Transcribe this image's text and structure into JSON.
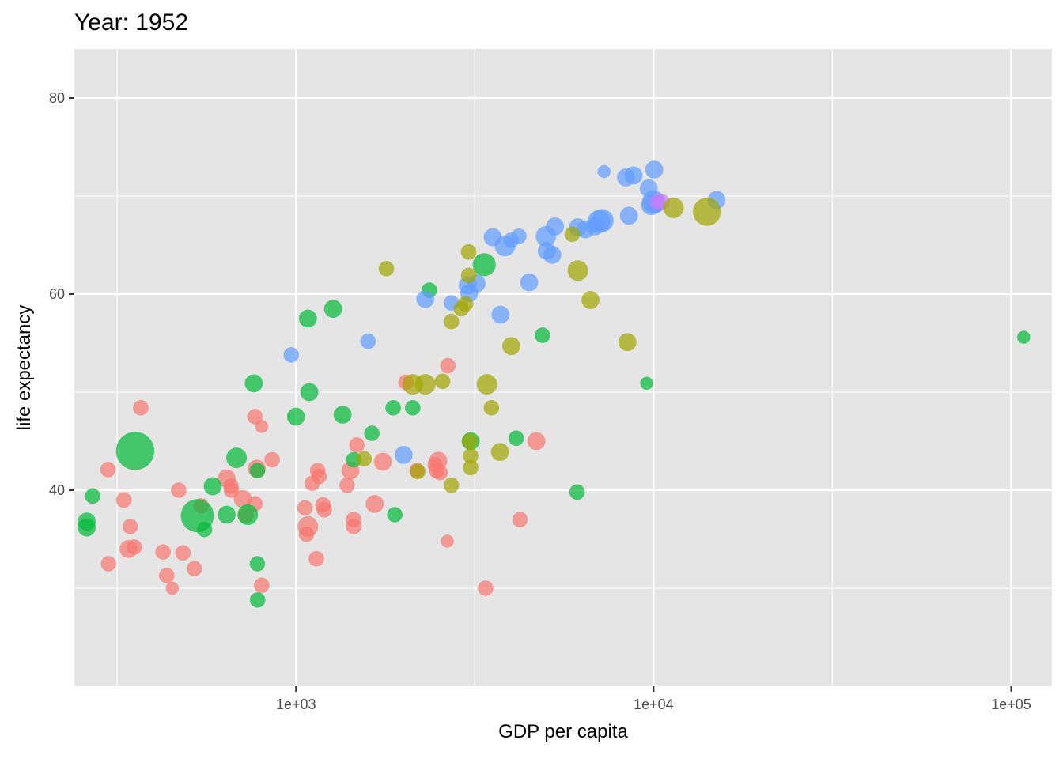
{
  "chart_data": {
    "type": "scatter",
    "title": "Year: 1952",
    "xlabel": "GDP per capita",
    "ylabel": "life expectancy",
    "x_scale": "log10",
    "xlim": [
      240,
      130000
    ],
    "ylim": [
      20,
      85
    ],
    "x_ticks": [
      1000,
      10000,
      100000
    ],
    "x_tick_labels": [
      "1e+03",
      "1e+04",
      "1e+05"
    ],
    "y_ticks": [
      40,
      60,
      80
    ],
    "y_tick_labels": [
      "40",
      "60",
      "80"
    ],
    "grid": true,
    "legend": "none",
    "groups": [
      {
        "color": "#F8766D",
        "points": [
          [
            298,
            42.1,
            3
          ],
          [
            299,
            32.5,
            3
          ],
          [
            330,
            39.0,
            3
          ],
          [
            344,
            36.3,
            3
          ],
          [
            353,
            34.2,
            3
          ],
          [
            340,
            34.0,
            4
          ],
          [
            368,
            48.4,
            3
          ],
          [
            425,
            33.7,
            3
          ],
          [
            435,
            31.3,
            3
          ],
          [
            451,
            30.0,
            2
          ],
          [
            470,
            40.0,
            3
          ],
          [
            483,
            33.6,
            3
          ],
          [
            520,
            32.0,
            3
          ],
          [
            543,
            38.4,
            3
          ],
          [
            640,
            41.2,
            4
          ],
          [
            658,
            40.4,
            3
          ],
          [
            660,
            40.0,
            3
          ],
          [
            710,
            39.1,
            4
          ],
          [
            725,
            37.4,
            3
          ],
          [
            768,
            38.6,
            3
          ],
          [
            777,
            42.2,
            4
          ],
          [
            768,
            47.5,
            3
          ],
          [
            802,
            46.5,
            2
          ],
          [
            802,
            30.3,
            3
          ],
          [
            858,
            43.1,
            3
          ],
          [
            1060,
            38.2,
            3
          ],
          [
            1070,
            35.5,
            3
          ],
          [
            1080,
            36.3,
            5
          ],
          [
            1110,
            40.7,
            3
          ],
          [
            1140,
            33.0,
            3
          ],
          [
            1150,
            42.0,
            3
          ],
          [
            1160,
            41.4,
            3
          ],
          [
            1190,
            38.5,
            3
          ],
          [
            1200,
            38.0,
            3
          ],
          [
            1390,
            40.5,
            3
          ],
          [
            1420,
            42.0,
            4
          ],
          [
            1450,
            37.0,
            3
          ],
          [
            1450,
            36.3,
            3
          ],
          [
            1480,
            44.6,
            3
          ],
          [
            1660,
            38.6,
            4
          ],
          [
            1750,
            42.9,
            4
          ],
          [
            2030,
            51.0,
            3
          ],
          [
            2180,
            42.0,
            3
          ],
          [
            2450,
            42.6,
            3
          ],
          [
            2500,
            43.0,
            4
          ],
          [
            2470,
            42.0,
            3
          ],
          [
            2530,
            41.8,
            3
          ],
          [
            2660,
            52.7,
            3
          ],
          [
            2650,
            34.8,
            2
          ],
          [
            3390,
            30.0,
            3
          ],
          [
            4230,
            37.0,
            3
          ],
          [
            4700,
            45.0,
            4
          ]
        ]
      },
      {
        "color": "#00BA38",
        "points": [
          [
            260,
            36.8,
            4
          ],
          [
            270,
            39.4,
            3
          ],
          [
            530,
            37.4,
            10
          ],
          [
            555,
            36.0,
            3
          ],
          [
            585,
            40.4,
            4
          ],
          [
            640,
            37.5,
            4
          ],
          [
            682,
            43.3,
            5
          ],
          [
            733,
            37.5,
            5
          ],
          [
            762,
            50.9,
            4
          ],
          [
            780,
            42.0,
            3
          ],
          [
            780,
            32.5,
            3
          ],
          [
            781,
            28.8,
            3
          ],
          [
            1000,
            47.5,
            4
          ],
          [
            1080,
            57.5,
            4
          ],
          [
            1090,
            50.0,
            4
          ],
          [
            1270,
            58.5,
            4
          ],
          [
            1350,
            47.7,
            4
          ],
          [
            1450,
            43.1,
            3
          ],
          [
            1630,
            45.8,
            3
          ],
          [
            1870,
            48.4,
            3
          ],
          [
            1890,
            37.5,
            3
          ],
          [
            2120,
            48.4,
            3
          ],
          [
            2360,
            60.4,
            3
          ],
          [
            3080,
            45.0,
            4
          ],
          [
            3360,
            63.0,
            6
          ],
          [
            4130,
            45.3,
            3
          ],
          [
            4890,
            55.8,
            3
          ],
          [
            6110,
            39.8,
            3
          ],
          [
            9560,
            50.9,
            2
          ],
          [
            108390,
            55.6,
            2
          ],
          [
            260,
            36.2,
            4
          ],
          [
            355,
            44.0,
            12
          ]
        ]
      },
      {
        "color": "#619CFF",
        "points": [
          [
            970,
            53.8,
            3
          ],
          [
            1590,
            55.2,
            3
          ],
          [
            2000,
            43.6,
            4
          ],
          [
            2300,
            59.5,
            4
          ],
          [
            2720,
            59.1,
            3
          ],
          [
            3050,
            60.1,
            4
          ],
          [
            3020,
            60.9,
            4
          ],
          [
            3200,
            61.1,
            4
          ],
          [
            3550,
            65.8,
            4
          ],
          [
            3730,
            57.9,
            4
          ],
          [
            3840,
            64.9,
            5
          ],
          [
            4000,
            65.5,
            3
          ],
          [
            4200,
            65.9,
            3
          ],
          [
            4490,
            61.2,
            4
          ],
          [
            5000,
            65.9,
            5
          ],
          [
            5030,
            64.4,
            4
          ],
          [
            5210,
            64.0,
            4
          ],
          [
            5300,
            66.9,
            4
          ],
          [
            6140,
            66.8,
            4
          ],
          [
            6450,
            66.6,
            4
          ],
          [
            6850,
            66.9,
            4
          ],
          [
            7040,
            67.4,
            6
          ],
          [
            7180,
            67.5,
            6
          ],
          [
            7270,
            72.5,
            2
          ],
          [
            8370,
            71.9,
            4
          ],
          [
            8530,
            68.0,
            4
          ],
          [
            8790,
            72.1,
            4
          ],
          [
            9690,
            70.8,
            4
          ],
          [
            9860,
            69.1,
            5
          ],
          [
            10040,
            72.7,
            4
          ],
          [
            10000,
            69.4,
            6
          ],
          [
            10150,
            69.2,
            4
          ],
          [
            15000,
            69.6,
            4
          ]
        ]
      },
      {
        "color": "#C77CFF",
        "points": [
          [
            10560,
            69.4,
            3
          ],
          [
            10200,
            69.4,
            3
          ]
        ]
      },
      {
        "color": "#A3A500",
        "points": [
          [
            1550,
            43.2,
            3
          ],
          [
            1790,
            62.6,
            3
          ],
          [
            2120,
            50.8,
            5
          ],
          [
            2190,
            41.9,
            3
          ],
          [
            2300,
            50.8,
            5
          ],
          [
            2570,
            51.1,
            3
          ],
          [
            2720,
            57.2,
            3
          ],
          [
            2720,
            40.5,
            3
          ],
          [
            2900,
            58.5,
            3
          ],
          [
            2980,
            59.0,
            3
          ],
          [
            3040,
            61.9,
            3
          ],
          [
            3040,
            64.3,
            3
          ],
          [
            3060,
            45.0,
            3
          ],
          [
            3080,
            43.5,
            3
          ],
          [
            3080,
            42.3,
            3
          ],
          [
            3420,
            50.8,
            5
          ],
          [
            3520,
            48.4,
            3
          ],
          [
            3720,
            43.9,
            4
          ],
          [
            4000,
            54.7,
            4
          ],
          [
            5920,
            66.1,
            3
          ],
          [
            6140,
            62.4,
            5
          ],
          [
            6660,
            59.4,
            4
          ],
          [
            8450,
            55.1,
            4
          ],
          [
            11370,
            68.8,
            5
          ],
          [
            14100,
            68.4,
            8
          ]
        ]
      }
    ]
  }
}
